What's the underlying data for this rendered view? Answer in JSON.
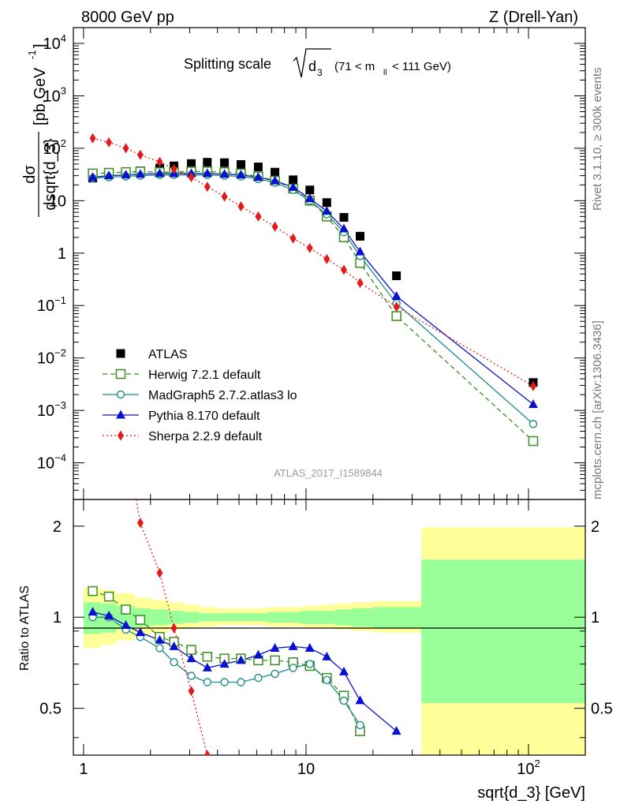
{
  "header": {
    "left": "8000 GeV pp",
    "right": "Z (Drell-Yan)"
  },
  "plot_title": {
    "prefix": "Splitting scale",
    "radicand": "d",
    "radicand_sub": "3",
    "cut_open": "(71 < m",
    "cut_sub": "ll",
    "cut_close": " < 111 GeV)"
  },
  "side_labels": {
    "rivet": "Rivet 3.1.10, ≥ 300k events",
    "mcplots": "mcplots.cern.ch [arXiv:1306.3436]"
  },
  "watermark": "ATLAS_2017_I1589844",
  "main_ylabel": {
    "num": "dσ",
    "den": "dsqrt{d_3}",
    "units_open": "[pb,GeV",
    "units_exp": "-1",
    "units_close": "]"
  },
  "ratio_ylabel": "Ratio to ATLAS",
  "xlabel": "sqrt{d_3} [GeV]",
  "colors": {
    "atlas": "#000000",
    "herwig": "#3a8d1f",
    "madgraph": "#1f8a8a",
    "pythia": "#0a10d0",
    "sherpa": "#e31a1a",
    "band_inner": "#99ff99",
    "band_outer": "#ffff99"
  },
  "chart_data": [
    {
      "type": "scatter",
      "panel": "main",
      "xscale": "log",
      "yscale": "log",
      "xlim": [
        0.9,
        180
      ],
      "ylim": [
        2e-05,
        20000
      ],
      "xticks": [
        "1",
        "10",
        "10²"
      ],
      "yticks": [
        {
          "base": "10",
          "exp": "4",
          "v": 10000
        },
        {
          "base": "10",
          "exp": "3",
          "v": 1000
        },
        {
          "base": "10",
          "exp": "2",
          "v": 100
        },
        {
          "base": "10",
          "exp": "",
          "v": 10
        },
        {
          "base": "1",
          "exp": "",
          "v": 1
        },
        {
          "base": "10",
          "exp": "−1",
          "v": 0.1
        },
        {
          "base": "10",
          "exp": "−2",
          "v": 0.01
        },
        {
          "base": "10",
          "exp": "−3",
          "v": 0.001
        },
        {
          "base": "10",
          "exp": "−4",
          "v": 0.0001
        }
      ],
      "x": [
        1.1,
        1.3,
        1.55,
        1.8,
        2.2,
        2.55,
        3.05,
        3.6,
        4.3,
        5.1,
        6.1,
        7.25,
        8.75,
        10.4,
        12.4,
        14.8,
        17.5,
        25.5,
        105
      ],
      "legend": "left",
      "series": [
        {
          "key": "atlas",
          "name": "ATLAS",
          "style": "data",
          "values": [
            27,
            31,
            35,
            37,
            42,
            46,
            51,
            54,
            53,
            49,
            44,
            35,
            25,
            16,
            9.2,
            4.8,
            2.1,
            0.37,
            0.0034
          ]
        },
        {
          "key": "herwig",
          "name": "Herwig 7.2.1 default",
          "style": "dashed",
          "marker": "square-open",
          "values": [
            33,
            34,
            35,
            36,
            35,
            35,
            36,
            36,
            35,
            33,
            29,
            24,
            17,
            10,
            5.0,
            2.0,
            0.65,
            0.063,
            0.00026
          ]
        },
        {
          "key": "madgraph",
          "name": "MadGraph5 2.7.2.atlas3 lo",
          "style": "solid",
          "marker": "circle-open",
          "values": [
            27,
            28,
            29,
            30,
            31,
            31,
            31,
            31,
            30,
            29,
            26,
            22,
            16,
            10,
            5.5,
            2.5,
            0.88,
            0.11,
            0.00055
          ]
        },
        {
          "key": "pythia",
          "name": "Pythia 8.170 default",
          "style": "solid",
          "marker": "triangle",
          "values": [
            28,
            30,
            31,
            32,
            33,
            33,
            33,
            33,
            32,
            31,
            28,
            24,
            18,
            11,
            6.3,
            2.9,
            1.06,
            0.15,
            0.0013
          ]
        },
        {
          "key": "sherpa",
          "name": "Sherpa 2.2.9 default",
          "style": "dotted",
          "marker": "diamond",
          "values": [
            155,
            130,
            100,
            75,
            55,
            40,
            28,
            18.5,
            12,
            7.8,
            5.0,
            3.2,
            1.9,
            1.25,
            0.77,
            0.48,
            0.27,
            0.095,
            0.0029
          ]
        }
      ]
    },
    {
      "type": "line",
      "panel": "ratio",
      "xscale": "log",
      "yscale": "log",
      "xlim": [
        0.9,
        180
      ],
      "ylim": [
        0.35,
        2.45
      ],
      "ylabel": "Ratio to ATLAS",
      "yticks": [
        {
          "label": "2",
          "v": 2
        },
        {
          "label": "1",
          "v": 1
        },
        {
          "label": "0.5",
          "v": 0.5
        }
      ],
      "x": [
        1.1,
        1.3,
        1.55,
        1.8,
        2.2,
        2.55,
        3.05,
        3.6,
        4.3,
        5.1,
        6.1,
        7.25,
        8.75,
        10.4,
        12.4,
        14.8,
        17.5,
        25.5
      ],
      "bands": {
        "edges": [
          1.0,
          1.2,
          1.4,
          1.7,
          2.0,
          2.4,
          2.8,
          3.3,
          4.0,
          4.7,
          5.6,
          6.7,
          8.0,
          9.5,
          11.3,
          13.5,
          16.0,
          20.0,
          33.0,
          180
        ],
        "inner": [
          [
            0.88,
            1.12
          ],
          [
            0.89,
            1.11
          ],
          [
            0.91,
            1.09
          ],
          [
            0.93,
            1.07
          ],
          [
            0.94,
            1.06
          ],
          [
            0.95,
            1.05
          ],
          [
            0.96,
            1.04
          ],
          [
            0.97,
            1.03
          ],
          [
            0.97,
            1.03
          ],
          [
            0.97,
            1.03
          ],
          [
            0.97,
            1.03
          ],
          [
            0.96,
            1.04
          ],
          [
            0.96,
            1.04
          ],
          [
            0.95,
            1.05
          ],
          [
            0.95,
            1.05
          ],
          [
            0.94,
            1.06
          ],
          [
            0.93,
            1.07
          ],
          [
            0.92,
            1.08
          ],
          [
            0.52,
            1.55
          ]
        ],
        "outer": [
          [
            0.79,
            1.25
          ],
          [
            0.81,
            1.23
          ],
          [
            0.84,
            1.2
          ],
          [
            0.87,
            1.16
          ],
          [
            0.89,
            1.14
          ],
          [
            0.91,
            1.12
          ],
          [
            0.92,
            1.1
          ],
          [
            0.93,
            1.08
          ],
          [
            0.94,
            1.07
          ],
          [
            0.94,
            1.07
          ],
          [
            0.94,
            1.07
          ],
          [
            0.93,
            1.08
          ],
          [
            0.93,
            1.08
          ],
          [
            0.92,
            1.09
          ],
          [
            0.92,
            1.1
          ],
          [
            0.91,
            1.11
          ],
          [
            0.9,
            1.12
          ],
          [
            0.89,
            1.13
          ],
          [
            0.35,
            1.98
          ]
        ]
      },
      "series": [
        {
          "key": "herwig",
          "name": "Herwig 7.2.1 default",
          "style": "dashed",
          "marker": "square-open",
          "values": [
            1.22,
            1.17,
            1.06,
            0.98,
            0.86,
            0.83,
            0.78,
            0.74,
            0.73,
            0.73,
            0.72,
            0.72,
            0.71,
            0.69,
            0.63,
            0.55,
            0.42,
            null
          ]
        },
        {
          "key": "madgraph",
          "name": "MadGraph5 2.7.2.atlas3 lo",
          "style": "solid",
          "marker": "circle-open",
          "values": [
            1.0,
            1.0,
            0.91,
            0.86,
            0.79,
            0.71,
            0.64,
            0.61,
            0.61,
            0.61,
            0.63,
            0.65,
            0.68,
            0.7,
            0.62,
            0.53,
            0.44,
            null
          ]
        },
        {
          "key": "pythia",
          "name": "Pythia 8.170 default",
          "style": "solid",
          "marker": "triangle",
          "values": [
            1.04,
            1.01,
            0.94,
            0.89,
            0.84,
            0.8,
            0.73,
            0.68,
            0.7,
            0.72,
            0.75,
            0.79,
            0.8,
            0.79,
            0.74,
            0.66,
            0.53,
            0.42
          ]
        },
        {
          "key": "sherpa",
          "name": "Sherpa 2.2.9 default",
          "style": "dotted",
          "marker": "diamond",
          "values": [
            null,
            null,
            null,
            2.05,
            1.4,
            0.92,
            0.57,
            0.35,
            null,
            null,
            null,
            null,
            null,
            null,
            null,
            null,
            null,
            null
          ]
        }
      ]
    }
  ]
}
